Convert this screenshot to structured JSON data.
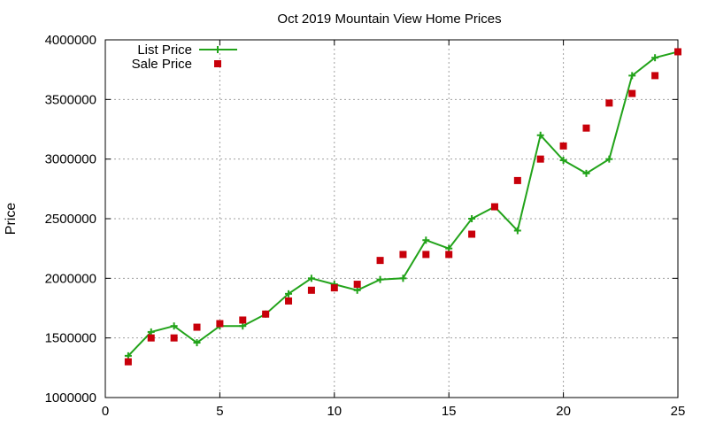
{
  "chart_data": {
    "type": "line",
    "title": "Oct 2019 Mountain View Home Prices",
    "xlabel": "",
    "ylabel": "Price",
    "xlim": [
      0,
      25
    ],
    "ylim": [
      1000000,
      4000000
    ],
    "x_ticks": [
      0,
      5,
      10,
      15,
      20,
      25
    ],
    "y_ticks": [
      1000000,
      1500000,
      2000000,
      2500000,
      3000000,
      3500000,
      4000000
    ],
    "grid": true,
    "legend_position": "top-left",
    "series": [
      {
        "name": "List Price",
        "style": "line-plus",
        "color": "#22a31a",
        "x": [
          1,
          2,
          3,
          4,
          5,
          6,
          7,
          8,
          9,
          10,
          11,
          12,
          13,
          14,
          15,
          16,
          17,
          18,
          19,
          20,
          21,
          22,
          23,
          24,
          25
        ],
        "values": [
          1350000,
          1550000,
          1600000,
          1460000,
          1600000,
          1600000,
          1700000,
          1870000,
          2000000,
          1950000,
          1900000,
          1990000,
          2000000,
          2320000,
          2250000,
          2500000,
          2600000,
          2400000,
          3200000,
          2990000,
          2880000,
          3000000,
          3700000,
          3850000,
          3900000
        ]
      },
      {
        "name": "Sale Price",
        "style": "square-points",
        "color": "#c8000a",
        "x": [
          1,
          2,
          3,
          4,
          5,
          6,
          7,
          8,
          9,
          10,
          11,
          12,
          13,
          14,
          15,
          16,
          17,
          18,
          19,
          20,
          21,
          22,
          23,
          24,
          25
        ],
        "values": [
          1300000,
          1500000,
          1500000,
          1590000,
          1620000,
          1650000,
          1700000,
          1810000,
          1900000,
          1920000,
          1950000,
          2150000,
          2200000,
          2200000,
          2200000,
          2370000,
          2600000,
          2820000,
          3000000,
          3110000,
          3260000,
          3470000,
          3550000,
          3700000,
          3900000
        ]
      }
    ]
  }
}
